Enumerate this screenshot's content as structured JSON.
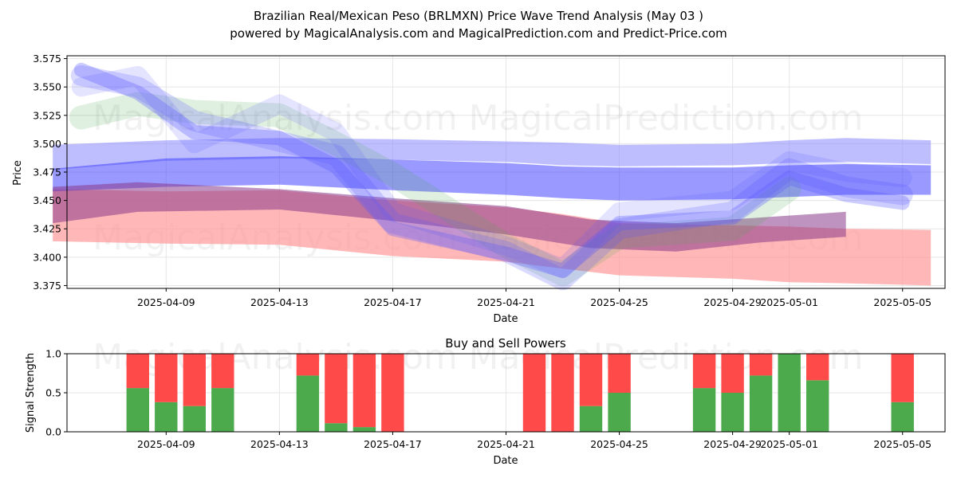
{
  "chart_data": [
    {
      "type": "area",
      "title": "Brazilian Real/Mexican Peso (BRLMXN) Price Wave Trend Analysis (May 03 )",
      "subtitle": "powered by MagicalAnalysis.com and MagicalPrediction.com and Predict-Price.com",
      "xlabel": "Date",
      "ylabel": "Price",
      "xlim": [
        "2025-04-05 12:00",
        "2025-05-06 12:00"
      ],
      "ylim": [
        3.3725,
        3.5775
      ],
      "x_ticks": [
        "2025-04-09",
        "2025-04-13",
        "2025-04-17",
        "2025-04-21",
        "2025-04-25",
        "2025-04-29",
        "2025-05-01",
        "2025-05-05"
      ],
      "y_ticks": [
        "3.375",
        "3.400",
        "3.425",
        "3.450",
        "3.475",
        "3.500",
        "3.525",
        "3.550",
        "3.575"
      ],
      "grid": true,
      "colors": {
        "upper_band": "#8888ff",
        "mid_band": "#3333ff",
        "purple_band": "#8a3a8a",
        "lower_band": "#ff9999",
        "green_wave": "#55aa55",
        "blue_wave": "#5555ff"
      },
      "series": [
        {
          "x": [
            "2025-04-05",
            "2025-04-09",
            "2025-04-13",
            "2025-04-17",
            "2025-04-21",
            "2025-04-23",
            "2025-04-25",
            "2025-04-29",
            "2025-05-01",
            "2025-05-03",
            "2025-05-06"
          ],
          "upper": [
            3.499,
            3.503,
            3.505,
            3.504,
            3.502,
            3.501,
            3.499,
            3.5,
            3.503,
            3.505,
            3.503
          ],
          "lower": [
            3.477,
            3.485,
            3.487,
            3.486,
            3.484,
            3.481,
            3.48,
            3.481,
            3.483,
            3.484,
            3.482
          ]
        },
        {
          "x": [
            "2025-04-05",
            "2025-04-09",
            "2025-04-13",
            "2025-04-17",
            "2025-04-21",
            "2025-04-23",
            "2025-04-25",
            "2025-04-29",
            "2025-05-01",
            "2025-05-03",
            "2025-05-06"
          ],
          "upper": [
            3.478,
            3.487,
            3.489,
            3.486,
            3.483,
            3.48,
            3.479,
            3.479,
            3.481,
            3.482,
            3.481
          ],
          "lower": [
            3.458,
            3.462,
            3.464,
            3.459,
            3.455,
            3.452,
            3.45,
            3.451,
            3.453,
            3.455,
            3.455
          ]
        },
        {
          "x": [
            "2025-04-05",
            "2025-04-08",
            "2025-04-13",
            "2025-04-17",
            "2025-04-21",
            "2025-04-24",
            "2025-04-27",
            "2025-04-30",
            "2025-05-03"
          ],
          "upper": [
            3.462,
            3.466,
            3.46,
            3.452,
            3.445,
            3.433,
            3.43,
            3.435,
            3.44
          ],
          "lower": [
            3.43,
            3.44,
            3.442,
            3.432,
            3.42,
            3.408,
            3.405,
            3.413,
            3.418
          ]
        },
        {
          "x": [
            "2025-04-05",
            "2025-04-09",
            "2025-04-13",
            "2025-04-17",
            "2025-04-21",
            "2025-04-23",
            "2025-04-25",
            "2025-04-29",
            "2025-05-01",
            "2025-05-03",
            "2025-05-06"
          ],
          "upper": [
            3.46,
            3.458,
            3.459,
            3.45,
            3.444,
            3.438,
            3.43,
            3.428,
            3.427,
            3.425,
            3.424
          ],
          "lower": [
            3.414,
            3.412,
            3.411,
            3.401,
            3.396,
            3.39,
            3.384,
            3.381,
            3.378,
            3.377,
            3.375
          ]
        },
        {
          "x": [
            "2025-04-06",
            "2025-04-08",
            "2025-04-10",
            "2025-04-13",
            "2025-04-15",
            "2025-04-17",
            "2025-04-21",
            "2025-04-23",
            "2025-04-25",
            "2025-04-29",
            "2025-05-01"
          ],
          "y": [
            3.523,
            3.535,
            3.528,
            3.525,
            3.5,
            3.473,
            3.41,
            3.385,
            3.418,
            3.425,
            3.46
          ]
        },
        {
          "x": [
            "2025-04-06",
            "2025-04-08",
            "2025-04-10",
            "2025-04-13",
            "2025-04-15",
            "2025-04-17",
            "2025-04-21",
            "2025-04-23",
            "2025-04-25",
            "2025-04-29",
            "2025-05-01",
            "2025-05-03",
            "2025-05-05"
          ],
          "y": [
            3.56,
            3.55,
            3.52,
            3.502,
            3.49,
            3.43,
            3.405,
            3.38,
            3.425,
            3.44,
            3.478,
            3.462,
            3.455
          ]
        },
        {
          "x": [
            "2025-04-06",
            "2025-04-08",
            "2025-04-10",
            "2025-04-13",
            "2025-04-15",
            "2025-04-17",
            "2025-04-21",
            "2025-04-23",
            "2025-04-25",
            "2025-04-29",
            "2025-05-01",
            "2025-05-03",
            "2025-05-05"
          ],
          "y": [
            3.55,
            3.56,
            3.5,
            3.535,
            3.51,
            3.44,
            3.41,
            3.39,
            3.44,
            3.45,
            3.485,
            3.475,
            3.47
          ]
        },
        {
          "x": [
            "2025-04-06",
            "2025-04-08",
            "2025-04-10",
            "2025-04-13",
            "2025-04-15",
            "2025-04-17",
            "2025-04-21",
            "2025-04-23",
            "2025-04-25",
            "2025-04-29",
            "2025-05-01",
            "2025-05-03",
            "2025-05-05"
          ],
          "y": [
            3.565,
            3.545,
            3.51,
            3.505,
            3.48,
            3.425,
            3.403,
            3.388,
            3.43,
            3.435,
            3.47,
            3.455,
            3.448
          ]
        }
      ],
      "watermarks": [
        "MagicalAnalysis.com",
        "MagicalPrediction.com"
      ]
    },
    {
      "type": "bar",
      "title": "Buy and Sell Powers",
      "xlabel": "Date",
      "ylabel": "Signal Strength",
      "ylim": [
        0,
        1
      ],
      "y_ticks": [
        "0.0",
        "0.5",
        "1.0"
      ],
      "x_ticks": [
        "2025-04-09",
        "2025-04-13",
        "2025-04-17",
        "2025-04-21",
        "2025-04-25",
        "2025-04-29",
        "2025-05-01",
        "2025-05-05"
      ],
      "grid": true,
      "colors": {
        "buy": "#4caa4c",
        "sell": "#ff4a4a"
      },
      "x": [
        "2025-04-08",
        "2025-04-09",
        "2025-04-10",
        "2025-04-11",
        "2025-04-14",
        "2025-04-15",
        "2025-04-16",
        "2025-04-17",
        "2025-04-22",
        "2025-04-23",
        "2025-04-24",
        "2025-04-25",
        "2025-04-28",
        "2025-04-29",
        "2025-04-30",
        "2025-05-01",
        "2025-05-02",
        "2025-05-05"
      ],
      "buy": [
        0.56,
        0.38,
        0.33,
        0.56,
        0.72,
        0.11,
        0.06,
        0.0,
        0.0,
        0.0,
        0.33,
        0.5,
        0.56,
        0.5,
        0.72,
        1.0,
        0.66,
        0.38
      ],
      "sell": [
        0.44,
        0.62,
        0.67,
        0.44,
        0.28,
        0.89,
        0.94,
        1.0,
        1.0,
        1.0,
        0.67,
        0.5,
        0.44,
        0.5,
        0.28,
        0.0,
        0.34,
        0.62
      ],
      "watermarks": [
        "MagicalAnalysis.com",
        "MagicalPrediction.com"
      ]
    }
  ]
}
